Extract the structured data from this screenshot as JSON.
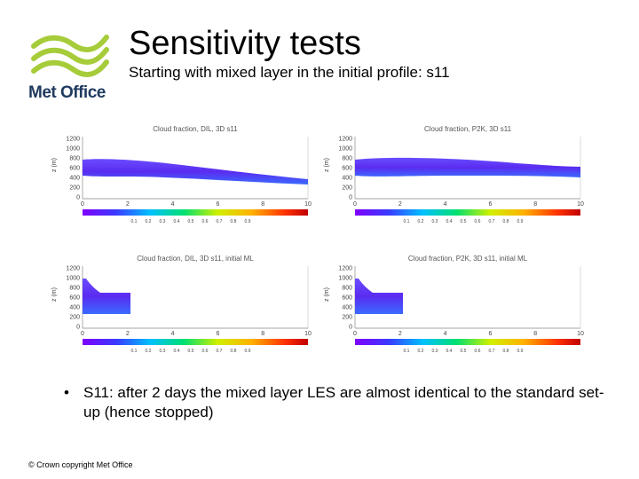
{
  "logo": {
    "text": "Met Office",
    "color": "#a6cc3a",
    "text_color": "#1f3a5f"
  },
  "title": "Sensitivity tests",
  "subtitle": "Starting with mixed layer in the initial profile: s11",
  "panels": [
    {
      "title": "Cloud fraction, DIL, 3D s11",
      "ylabel": "z (m)",
      "yticks": [
        "1200",
        "1000",
        "800",
        "600",
        "400",
        "200",
        "0"
      ],
      "xticks": [
        "0",
        "2",
        "4",
        "6",
        "8",
        "10"
      ],
      "cticks": [
        "0.1",
        "0.2",
        "0.3",
        "0.4",
        "0.5",
        "0.6",
        "0.7",
        "0.8",
        "0.9"
      ]
    },
    {
      "title": "Cloud fraction, P2K, 3D s11",
      "ylabel": "z (m)",
      "yticks": [
        "1200",
        "1000",
        "800",
        "600",
        "400",
        "200",
        "0"
      ],
      "xticks": [
        "0",
        "2",
        "4",
        "6",
        "8",
        "10"
      ],
      "cticks": [
        "0.1",
        "0.2",
        "0.3",
        "0.4",
        "0.5",
        "0.6",
        "0.7",
        "0.8",
        "0.9"
      ]
    },
    {
      "title": "Cloud fraction, DIL, 3D s11, initial ML",
      "ylabel": "z (m)",
      "yticks": [
        "1200",
        "1000",
        "800",
        "600",
        "400",
        "200",
        "0"
      ],
      "xticks": [
        "0",
        "2",
        "4",
        "6",
        "8",
        "10"
      ],
      "cticks": [
        "0.1",
        "0.2",
        "0.3",
        "0.4",
        "0.5",
        "0.6",
        "0.7",
        "0.8",
        "0.9"
      ]
    },
    {
      "title": "Cloud fraction, P2K, 3D s11, initial ML",
      "ylabel": "z (m)",
      "yticks": [
        "1200",
        "1000",
        "800",
        "600",
        "400",
        "200",
        "0"
      ],
      "xticks": [
        "0",
        "2",
        "4",
        "6",
        "8",
        "10"
      ],
      "cticks": [
        "0.1",
        "0.2",
        "0.3",
        "0.4",
        "0.5",
        "0.6",
        "0.7",
        "0.8",
        "0.9"
      ]
    }
  ],
  "bullet": "S11: after 2 days the mixed layer LES are almost identical to the standard set-up (hence stopped)",
  "footer": "© Crown copyright   Met Office"
}
